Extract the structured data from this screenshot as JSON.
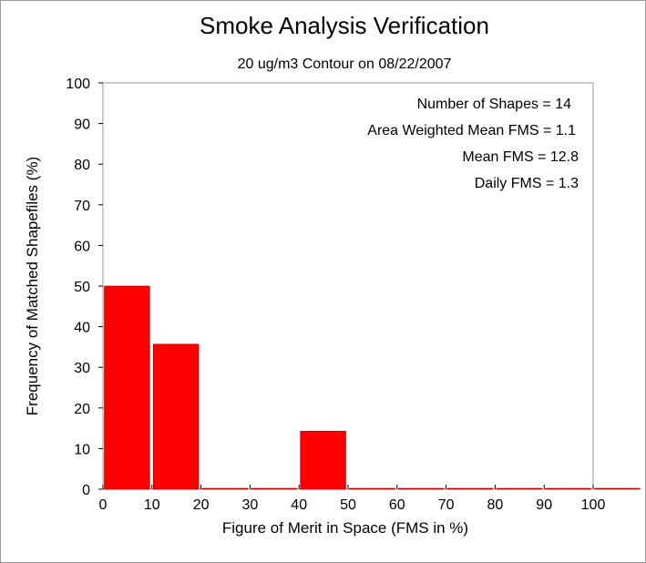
{
  "chart_data": {
    "type": "bar",
    "title": "Smoke Analysis Verification",
    "subtitle": "20 ug/m3 Contour on 08/22/2007",
    "xlabel": "Figure of Merit in Space (FMS in %)",
    "ylabel": "Frequency of Matched Shapefiles (%)",
    "xlim": [
      0,
      100
    ],
    "ylim": [
      0,
      100
    ],
    "x_ticks": [
      "0",
      "10",
      "20",
      "30",
      "40",
      "50",
      "60",
      "70",
      "80",
      "90",
      "100"
    ],
    "y_ticks": [
      "0",
      "10",
      "20",
      "30",
      "40",
      "50",
      "60",
      "70",
      "80",
      "90",
      "100"
    ],
    "bins": [
      {
        "start": 0,
        "end": 10,
        "value": 50
      },
      {
        "start": 10,
        "end": 20,
        "value": 35.7
      },
      {
        "start": 20,
        "end": 30,
        "value": 0
      },
      {
        "start": 30,
        "end": 40,
        "value": 0
      },
      {
        "start": 40,
        "end": 50,
        "value": 14.3
      },
      {
        "start": 50,
        "end": 60,
        "value": 0
      },
      {
        "start": 60,
        "end": 70,
        "value": 0
      },
      {
        "start": 70,
        "end": 80,
        "value": 0
      },
      {
        "start": 80,
        "end": 90,
        "value": 0
      },
      {
        "start": 90,
        "end": 100,
        "value": 0
      },
      {
        "start": 100,
        "end": 110,
        "value": 0
      }
    ],
    "bar_color": "#ff0000",
    "grid": false,
    "annotations": [
      "Number of Shapes = 14",
      "Area Weighted Mean FMS = 1.1",
      "Mean FMS = 12.8",
      "Daily FMS = 1.3"
    ]
  }
}
